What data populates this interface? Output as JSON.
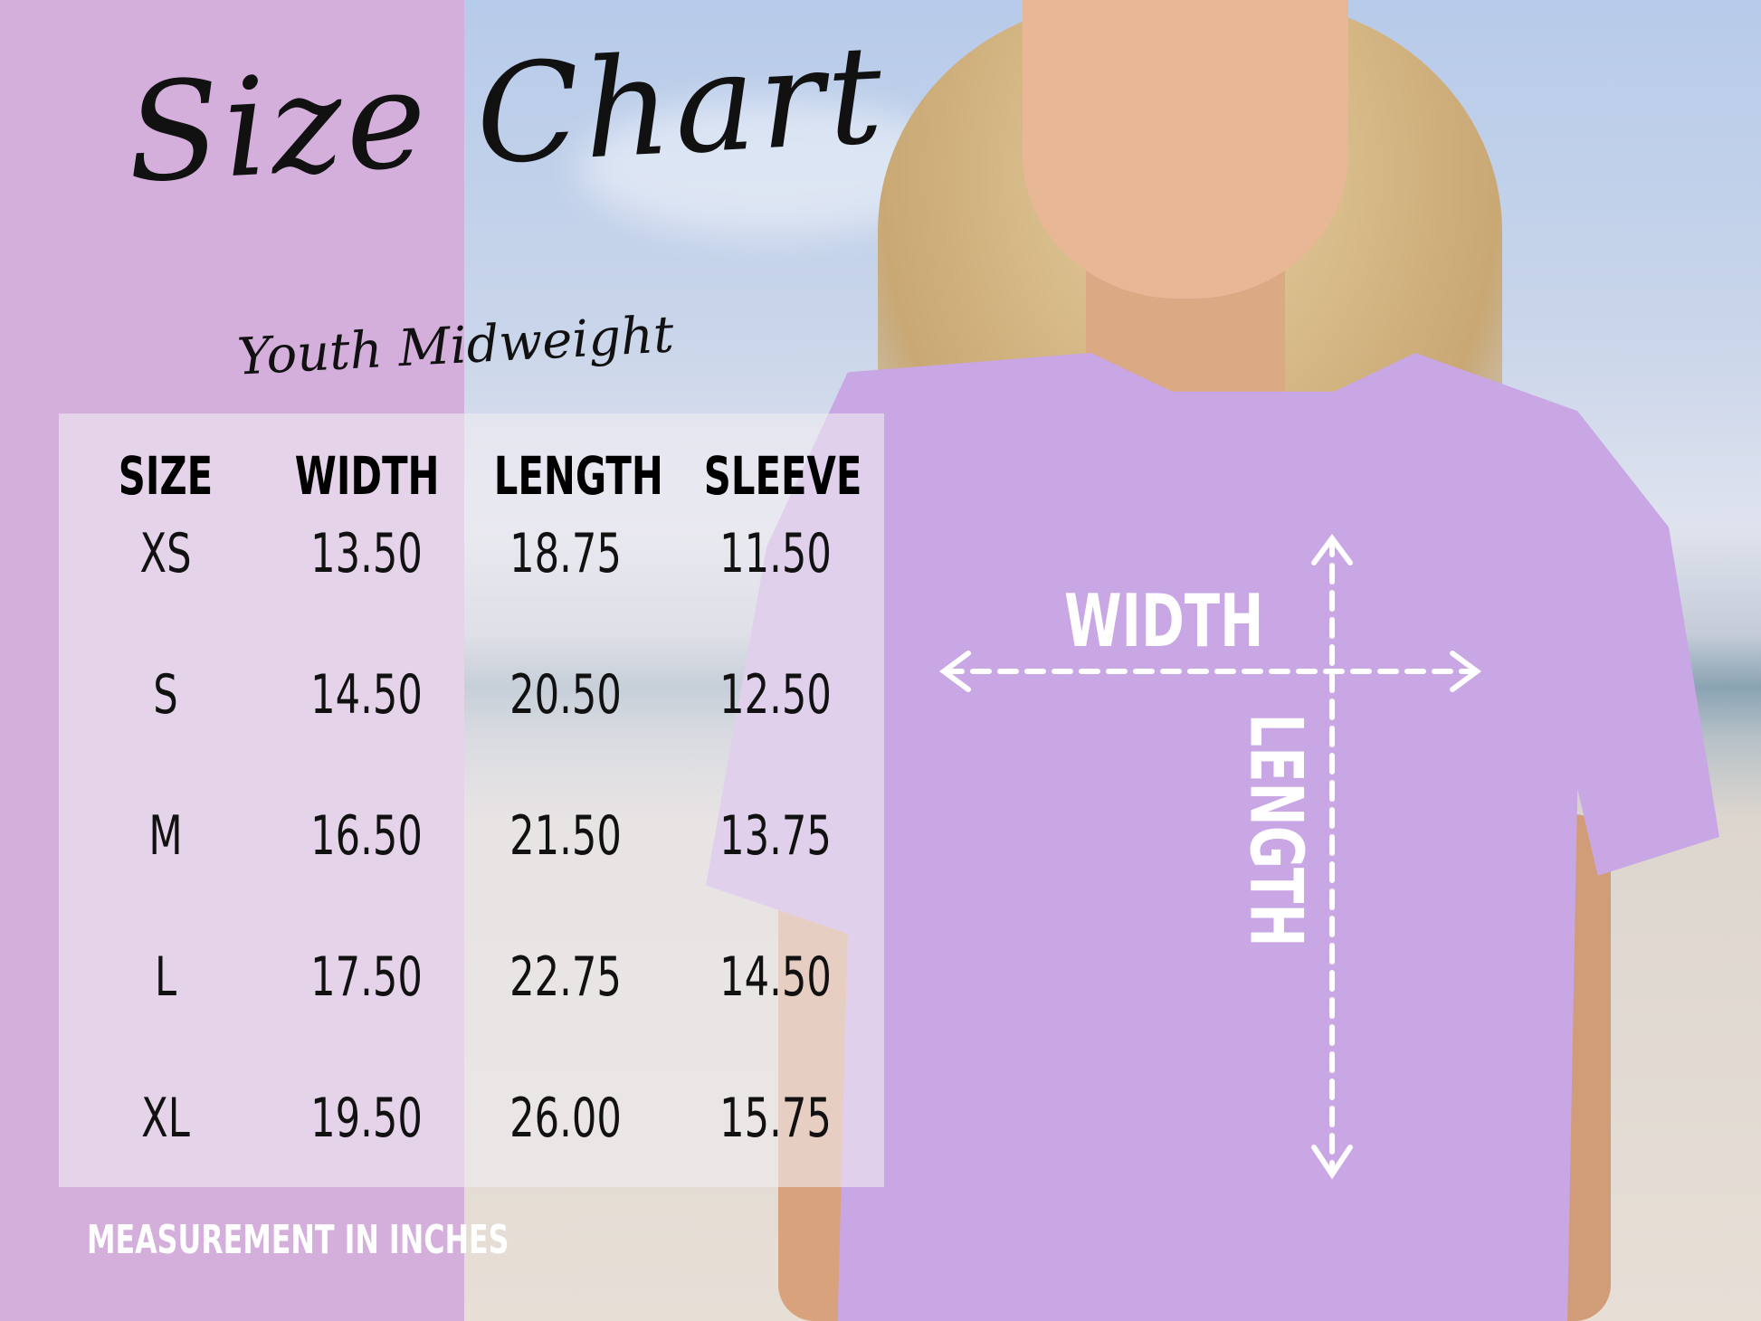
{
  "title": "Size Chart",
  "subtitle": "Youth Midweight",
  "table": {
    "headers": [
      "SIZE",
      "WIDTH",
      "LENGTH",
      "SLEEVE"
    ],
    "rows": [
      [
        "XS",
        "13.50",
        "18.75",
        "11.50"
      ],
      [
        "S",
        "14.50",
        "20.50",
        "12.50"
      ],
      [
        "M",
        "16.50",
        "21.50",
        "13.75"
      ],
      [
        "L",
        "17.50",
        "22.75",
        "14.50"
      ],
      [
        "XL",
        "19.50",
        "26.00",
        "15.75"
      ]
    ]
  },
  "note": "MEASUREMENT IN INCHES",
  "diagram": {
    "width_label": "WIDTH",
    "length_label": "LENGTH"
  },
  "colors": {
    "panel": "#d4afdc",
    "shirt": "#c9a6e4",
    "text": "#111111",
    "annotation": "#ffffff"
  }
}
